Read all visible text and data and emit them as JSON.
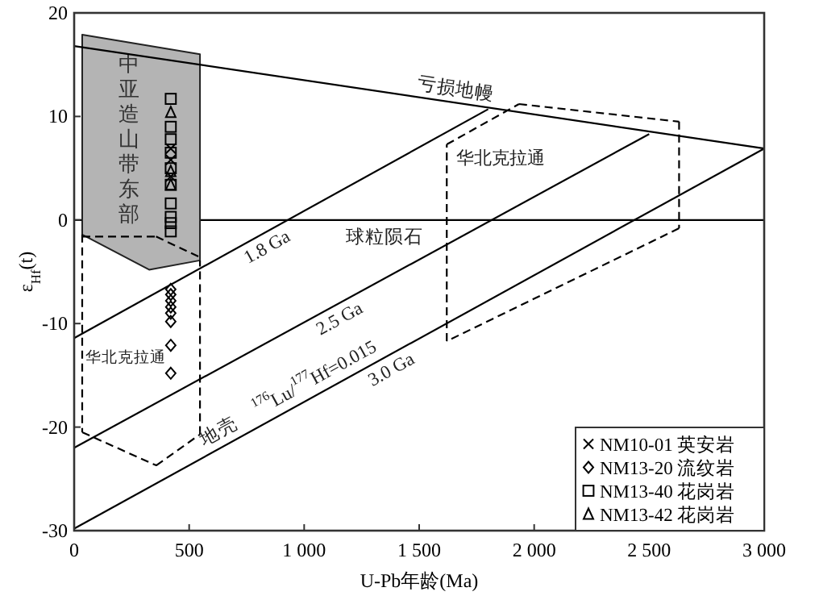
{
  "chart_data": {
    "type": "scatter",
    "xlabel": "U-Pb年龄(Ma)",
    "ylabel": "ε$_{Hf}$(t)",
    "xlim": [
      0,
      3000
    ],
    "ylim": [
      -30,
      20
    ],
    "xticks": [
      0,
      500,
      {
        "value": 1000,
        "label": "1 000"
      },
      {
        "value": 1500,
        "label": "1 500"
      },
      {
        "value": 2000,
        "label": "2 000"
      },
      {
        "value": 2500,
        "label": "2 500"
      },
      {
        "value": 3000,
        "label": "3 000"
      }
    ],
    "yticks": [
      -30,
      -20,
      -10,
      0,
      10,
      20
    ],
    "legend": "bottom right",
    "ref_lines": [
      {
        "axis": "y",
        "value": 0,
        "label": "球粒陨石",
        "color": "#000000"
      }
    ],
    "series": [
      {
        "type": "area",
        "name": "中亚造山带东部",
        "color": "#b4b4b4",
        "x": [
          35,
          547,
          547,
          326,
          35
        ],
        "values": [
          17.9,
          16.0,
          -3.9,
          -4.8,
          -1.4
        ]
      },
      {
        "type": "line",
        "color": "#000000",
        "line_style": "dashed",
        "x": [
          35,
          356,
          547
        ],
        "values": [
          -1.6,
          -1.6,
          -3.6
        ]
      },
      {
        "type": "line",
        "name": "华北克拉通",
        "color": "#000000",
        "line_style": "dashed",
        "x": [
          35,
          35,
          357,
          547,
          547
        ],
        "values": [
          -1.4,
          -20.5,
          -23.7,
          -20.7,
          -3.9
        ]
      },
      {
        "type": "line",
        "name": "华北克拉通",
        "color": "#000000",
        "line_style": "dashed",
        "x": [
          1620,
          1934,
          2630,
          2630,
          1620,
          1620
        ],
        "values": [
          7.3,
          11.2,
          9.5,
          -0.8,
          -11.7,
          7.3
        ]
      },
      {
        "type": "line",
        "name": "亏损地幔",
        "color": "#000000",
        "line_style": "solid",
        "x": [
          0,
          3000
        ],
        "values": [
          16.8,
          6.9
        ]
      },
      {
        "type": "line",
        "name": "1.8 Ga",
        "color": "#000000",
        "line_style": "solid",
        "x": [
          0,
          1800
        ],
        "values": [
          -11.4,
          10.7
        ]
      },
      {
        "type": "line",
        "name": "2.5 Ga",
        "color": "#000000",
        "line_style": "solid",
        "x": [
          0,
          2500
        ],
        "values": [
          -22.0,
          8.3
        ]
      },
      {
        "type": "line",
        "name": "3.0 Ga",
        "color": "#000000",
        "line_style": "solid",
        "x": [
          0,
          3000
        ],
        "values": [
          -29.8,
          6.9
        ]
      },
      {
        "type": "scatter",
        "name": "NM10-01 英安岩",
        "marker": "cross",
        "color": "#000000",
        "x": [
          420,
          420,
          420
        ],
        "values": [
          6.9,
          5.8,
          4.2
        ]
      },
      {
        "type": "scatter",
        "name": "NM13-20 流纹岩",
        "marker": "diamond",
        "color": "#000000",
        "x": [
          420,
          420,
          420,
          420,
          420,
          420,
          420,
          420
        ],
        "values": [
          -6.7,
          -7.2,
          -7.8,
          -8.4,
          -9.0,
          -9.8,
          -12.1,
          -14.8
        ]
      },
      {
        "type": "scatter",
        "name": "NM13-40 花岗岩",
        "marker": "square",
        "color": "#000000",
        "x": [
          420,
          420,
          420,
          420,
          420,
          420,
          420,
          420,
          420,
          420
        ],
        "values": [
          11.7,
          9.0,
          7.8,
          6.5,
          5.0,
          3.4,
          1.6,
          0.3,
          -0.3,
          -1.1
        ]
      },
      {
        "type": "scatter",
        "name": "NM13-42 花岗岩",
        "marker": "triangle",
        "color": "#000000",
        "x": [
          420,
          420,
          420
        ],
        "values": [
          10.4,
          4.7,
          3.4
        ]
      }
    ],
    "annotations": [
      "$^{176}$Lu/$^{177}$Hf=0.015",
      "地壳"
    ]
  }
}
